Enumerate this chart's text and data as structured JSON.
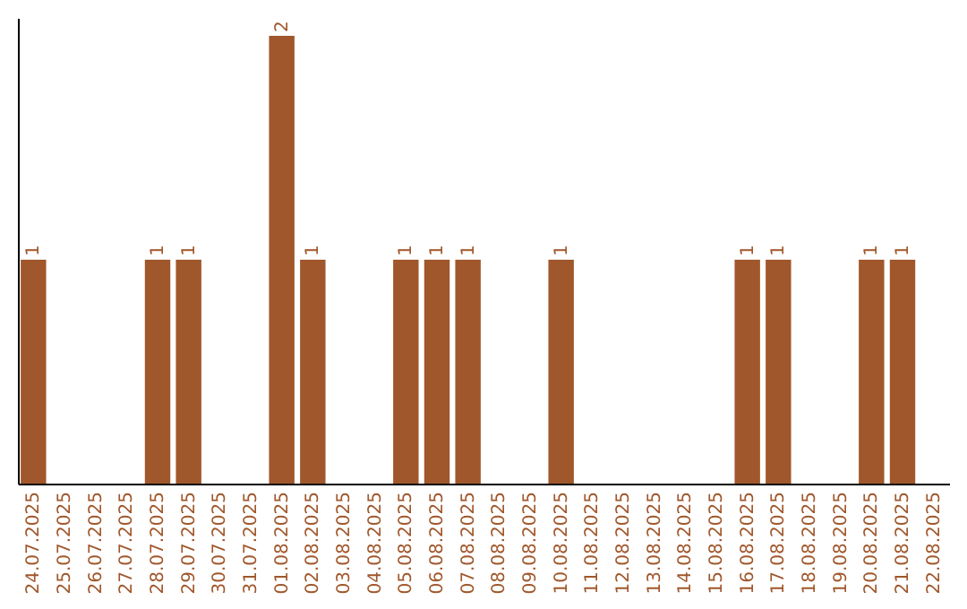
{
  "chart_data": {
    "type": "bar",
    "categories": [
      "24.07.2025",
      "25.07.2025",
      "26.07.2025",
      "27.07.2025",
      "28.07.2025",
      "29.07.2025",
      "30.07.2025",
      "31.07.2025",
      "01.08.2025",
      "02.08.2025",
      "03.08.2025",
      "04.08.2025",
      "05.08.2025",
      "06.08.2025",
      "07.08.2025",
      "08.08.2025",
      "09.08.2025",
      "10.08.2025",
      "11.08.2025",
      "12.08.2025",
      "13.08.2025",
      "14.08.2025",
      "15.08.2025",
      "16.08.2025",
      "17.08.2025",
      "18.08.2025",
      "19.08.2025",
      "20.08.2025",
      "21.08.2025",
      "22.08.2025"
    ],
    "values": [
      1,
      0,
      0,
      0,
      1,
      1,
      0,
      0,
      2,
      1,
      0,
      0,
      1,
      1,
      1,
      0,
      0,
      1,
      0,
      0,
      0,
      0,
      0,
      1,
      1,
      0,
      0,
      1,
      1,
      0
    ],
    "value_labels": [
      "1",
      null,
      null,
      null,
      "1",
      "1",
      null,
      null,
      "2",
      "1",
      null,
      null,
      "1",
      "1",
      "1",
      null,
      null,
      "1",
      null,
      null,
      null,
      null,
      null,
      "1",
      "1",
      null,
      null,
      "1",
      "1",
      null
    ],
    "color": "#a0572b",
    "tick_labels": "x",
    "grid": false
  }
}
